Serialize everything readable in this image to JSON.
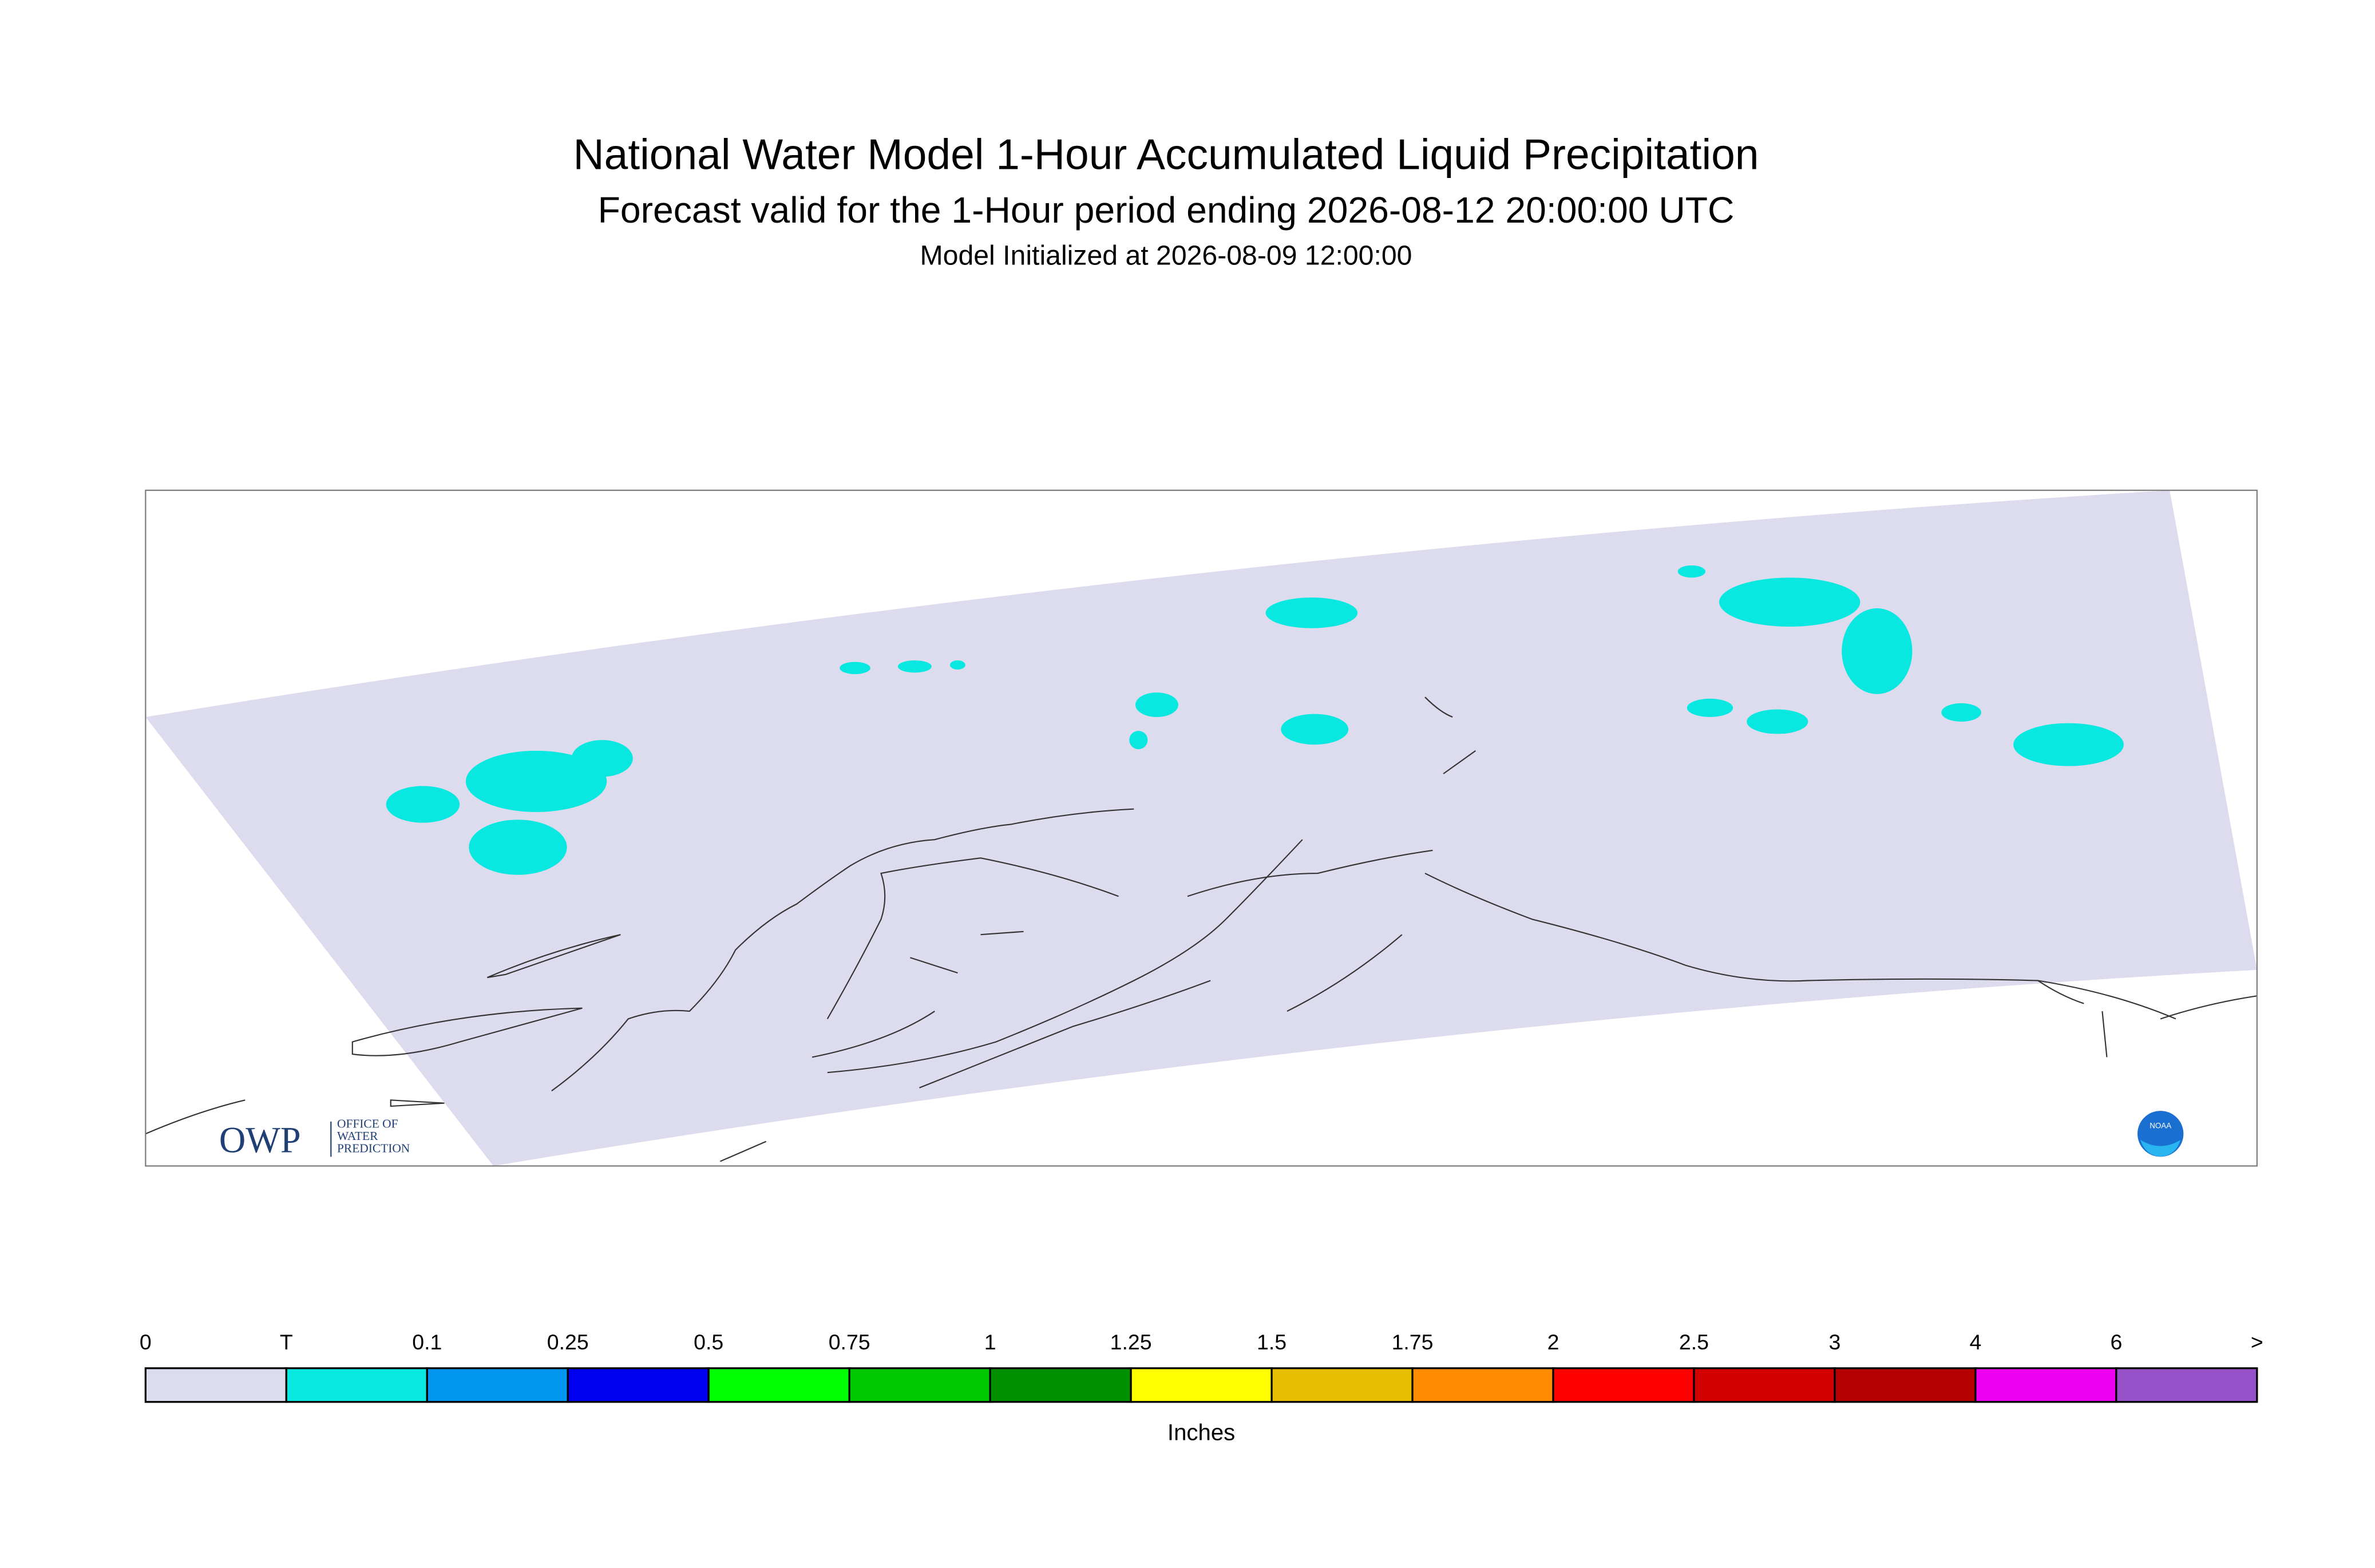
{
  "header": {
    "title": "National Water Model 1-Hour Accumulated Liquid Precipitation",
    "subtitle": "Forecast valid for the 1-Hour period ending 2026-08-12 20:00:00 UTC",
    "initialized": "Model Initialized at 2026-08-09 12:00:00"
  },
  "legend": {
    "labels": [
      "0",
      "T",
      "0.1",
      "0.25",
      "0.5",
      "0.75",
      "1",
      "1.25",
      "1.5",
      "1.75",
      "2",
      "2.5",
      "3",
      "4",
      "6",
      ">"
    ],
    "colors": [
      "#dcdcee",
      "#08e8e0",
      "#0096f0",
      "#0000f0",
      "#00ff00",
      "#00c800",
      "#009000",
      "#ffff00",
      "#e6be00",
      "#ff8c00",
      "#ff0000",
      "#d20000",
      "#b40000",
      "#f000f0",
      "#9650c8"
    ],
    "unit": "Inches"
  },
  "logos": {
    "owp": "OWP",
    "owp_text": [
      "OFFICE OF",
      "WATER",
      "PREDICTION"
    ],
    "noaa": "NOAA"
  }
}
